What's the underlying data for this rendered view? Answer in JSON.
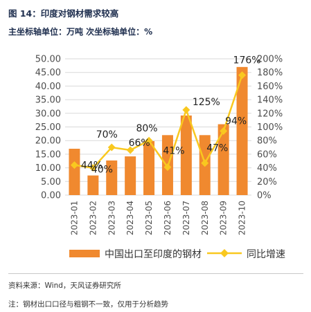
{
  "header": {
    "title": "图 14：印度对钢材需求较高",
    "subtitle": "主坐标轴单位：万吨 次坐标轴单位：%"
  },
  "footer": {
    "source": "资料来源：Wind，天风证券研究所",
    "note": "注：钢材出口口径与粗钢不一致，仅用于分析趋势"
  },
  "colors": {
    "bar": "#f0892f",
    "line": "#f9c81f",
    "grid": "#d9d9d9"
  },
  "chart_data": {
    "type": "bar",
    "categories": [
      "2023-01",
      "2023-02",
      "2023-03",
      "2023-04",
      "2023-05",
      "2023-06",
      "2023-07",
      "2023-08",
      "2023-09",
      "2023-10"
    ],
    "ylim": [
      0,
      50
    ],
    "y_ticks": [
      "0.00",
      "5.00",
      "10.00",
      "15.00",
      "20.00",
      "25.00",
      "30.00",
      "35.00",
      "40.00",
      "45.00",
      "50.00"
    ],
    "y2lim": [
      0,
      200
    ],
    "y2_ticks": [
      "0%",
      "20%",
      "40%",
      "60%",
      "80%",
      "100%",
      "120%",
      "140%",
      "160%",
      "180%",
      "200%"
    ],
    "grid": true,
    "legend_position": "bottom",
    "series": [
      {
        "name": "中国出口至印度的钢材",
        "type": "bar",
        "axis": "left",
        "values": [
          17.0,
          7.2,
          12.7,
          14.2,
          19.8,
          22.0,
          29.2,
          22.0,
          26.0,
          47.0
        ]
      },
      {
        "name": "同比增速",
        "type": "line",
        "axis": "right",
        "values": [
          44,
          40,
          70,
          66,
          80,
          41,
          125,
          47,
          94,
          176
        ],
        "labels": [
          "44%",
          "40%",
          "70%",
          "66%",
          "80%",
          "41%",
          "125%",
          "47%",
          "94%",
          "176%"
        ]
      }
    ]
  }
}
